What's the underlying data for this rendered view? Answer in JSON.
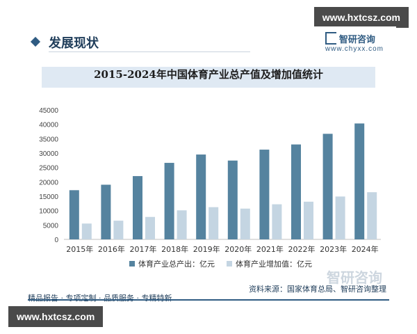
{
  "watermark_top": "www.hxtcsz.com",
  "watermark_bottom": "www.hxtcsz.com",
  "section_title": "发展现状",
  "brand": {
    "name": "智研咨询",
    "url": "www.chyxx.com"
  },
  "footer": {
    "left": "精品报告 · 专项定制 · 品质服务 · 专精特新",
    "source": "资料来源：国家体育总局、智研咨询整理",
    "logo_text": "智研咨询"
  },
  "colors": {
    "total": "#55839f",
    "added": "#c4d5e2",
    "accent": "#2f5b82"
  },
  "chart_data": {
    "type": "bar",
    "title": "2015-2024年中国体育产业总产值及增加值统计",
    "categories": [
      "2015年",
      "2016年",
      "2017年",
      "2018年",
      "2019年",
      "2020年",
      "2021年",
      "2022年",
      "2023年",
      "2024年"
    ],
    "series": [
      {
        "name": "体育产业总产出：亿元",
        "values": [
          17100,
          19000,
          22000,
          26600,
          29500,
          27400,
          31200,
          33000,
          36700,
          40300
        ]
      },
      {
        "name": "体育产业增加值：亿元",
        "values": [
          5500,
          6500,
          7800,
          10100,
          11200,
          10700,
          12200,
          13100,
          14900,
          16400
        ]
      }
    ],
    "ylim": [
      0,
      45000
    ],
    "yticks": [
      0,
      5000,
      10000,
      15000,
      20000,
      25000,
      30000,
      35000,
      40000,
      45000
    ],
    "grid": false,
    "legend": "bottom"
  }
}
